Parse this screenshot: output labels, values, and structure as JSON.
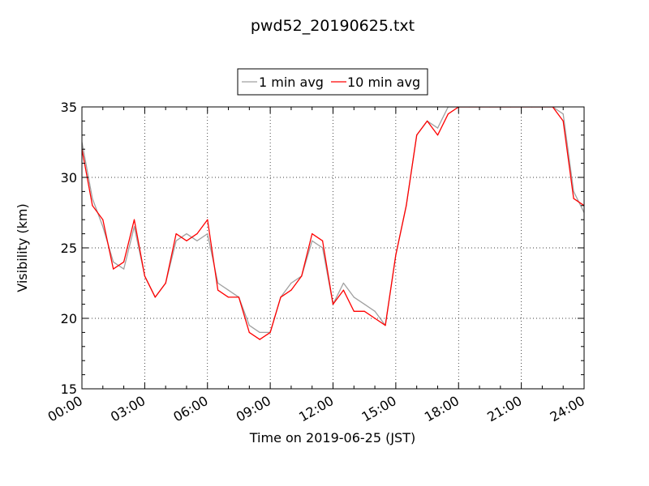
{
  "chart_data": {
    "type": "line",
    "title": "pwd52_20190625.txt",
    "xlabel": "Time on 2019-06-25 (JST)",
    "ylabel": "Visibility (km)",
    "xlim": [
      "00:00",
      "24:00"
    ],
    "ylim": [
      15,
      35
    ],
    "x_ticks": [
      "00:00",
      "03:00",
      "06:00",
      "09:00",
      "12:00",
      "15:00",
      "18:00",
      "21:00",
      "24:00"
    ],
    "y_ticks": [
      "15",
      "20",
      "25",
      "30",
      "35"
    ],
    "grid": true,
    "legend_position": "top-center",
    "series": [
      {
        "name": "1 min avg",
        "color": "#a0a0a0",
        "x": [
          "00:00",
          "00:30",
          "01:00",
          "01:30",
          "02:00",
          "02:30",
          "03:00",
          "03:30",
          "04:00",
          "04:30",
          "05:00",
          "05:30",
          "06:00",
          "06:30",
          "07:00",
          "07:30",
          "08:00",
          "08:30",
          "09:00",
          "09:30",
          "10:00",
          "10:30",
          "11:00",
          "11:30",
          "12:00",
          "12:30",
          "13:00",
          "13:30",
          "14:00",
          "14:30",
          "15:00",
          "15:30",
          "16:00",
          "16:30",
          "17:00",
          "17:30",
          "18:00",
          "18:30",
          "19:00",
          "19:30",
          "20:00",
          "20:30",
          "21:00",
          "21:30",
          "22:00",
          "22:30",
          "23:00",
          "23:30",
          "24:00"
        ],
        "values": [
          32.5,
          28.5,
          26.5,
          24.0,
          23.5,
          26.5,
          23.0,
          21.5,
          22.5,
          25.5,
          26.0,
          25.5,
          26.0,
          22.5,
          22.0,
          21.5,
          19.5,
          19.0,
          19.0,
          21.5,
          22.5,
          23.0,
          25.5,
          25.0,
          21.0,
          22.5,
          21.5,
          21.0,
          20.5,
          19.5,
          24.5,
          28.0,
          33.0,
          34.0,
          33.5,
          35.0,
          35.0,
          35.0,
          35.0,
          35.0,
          35.0,
          35.0,
          35.0,
          35.0,
          35.0,
          35.0,
          34.5,
          29.0,
          27.5
        ]
      },
      {
        "name": "10 min avg",
        "color": "#ff0000",
        "x": [
          "00:00",
          "00:30",
          "01:00",
          "01:30",
          "02:00",
          "02:30",
          "03:00",
          "03:30",
          "04:00",
          "04:30",
          "05:00",
          "05:30",
          "06:00",
          "06:30",
          "07:00",
          "07:30",
          "08:00",
          "08:30",
          "09:00",
          "09:30",
          "10:00",
          "10:30",
          "11:00",
          "11:30",
          "12:00",
          "12:30",
          "13:00",
          "13:30",
          "14:00",
          "14:30",
          "15:00",
          "15:30",
          "16:00",
          "16:30",
          "17:00",
          "17:30",
          "18:00",
          "18:30",
          "19:00",
          "19:30",
          "20:00",
          "20:30",
          "21:00",
          "21:30",
          "22:00",
          "22:30",
          "23:00",
          "23:30",
          "24:00"
        ],
        "values": [
          32.0,
          28.0,
          27.0,
          23.5,
          24.0,
          27.0,
          23.0,
          21.5,
          22.5,
          26.0,
          25.5,
          26.0,
          27.0,
          22.0,
          21.5,
          21.5,
          19.0,
          18.5,
          19.0,
          21.5,
          22.0,
          23.0,
          26.0,
          25.5,
          21.0,
          22.0,
          20.5,
          20.5,
          20.0,
          19.5,
          24.5,
          28.0,
          33.0,
          34.0,
          33.0,
          34.5,
          35.0,
          35.0,
          35.0,
          35.0,
          35.0,
          35.0,
          35.0,
          35.0,
          35.0,
          35.0,
          34.0,
          28.5,
          28.0
        ]
      }
    ]
  }
}
